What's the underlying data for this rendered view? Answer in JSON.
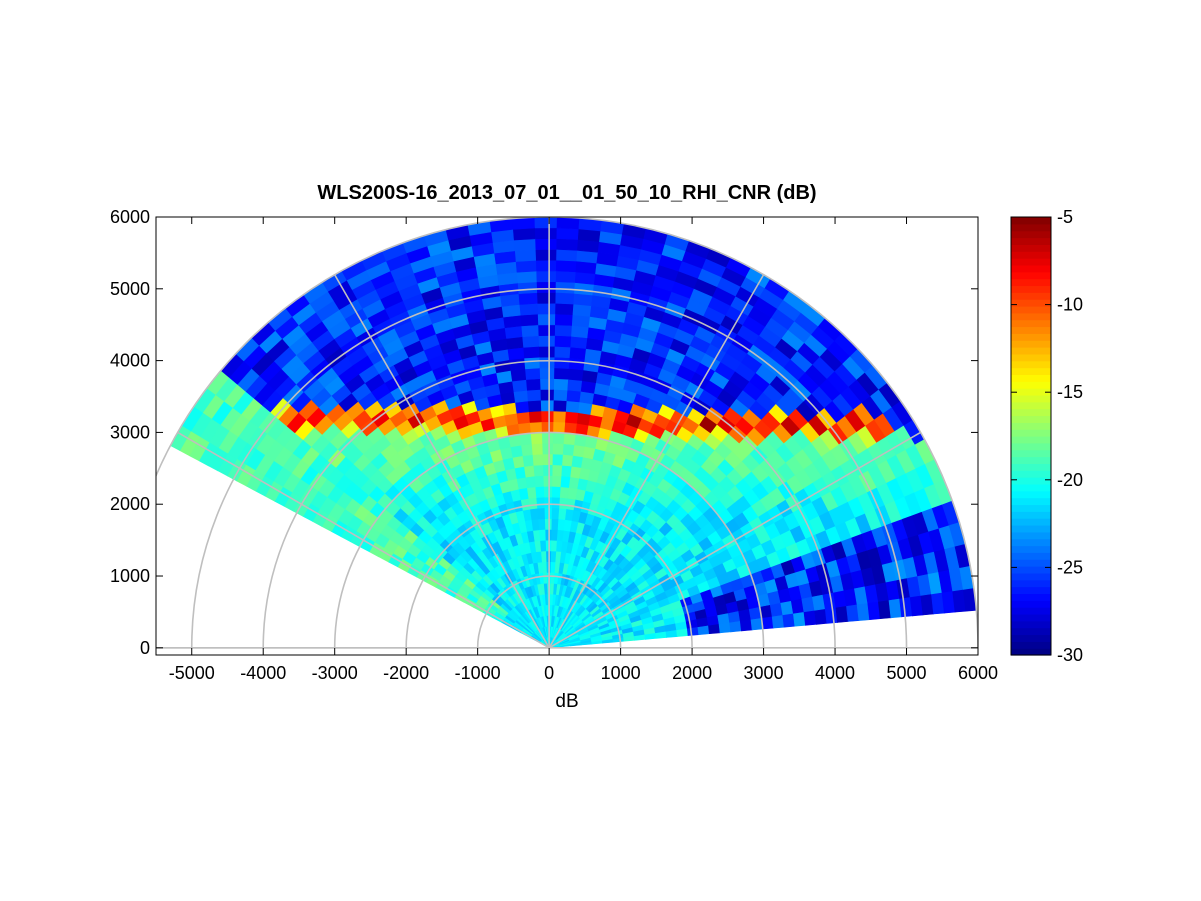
{
  "chart_data": {
    "type": "heatmap",
    "subtype": "polar-rhi-scan",
    "title": "WLS200S-16_2013_07_01__01_50_10_RHI_CNR (dB)",
    "xlabel": "dB",
    "ylabel": "",
    "xlim": [
      -5500,
      6000
    ],
    "ylim": [
      -100,
      6000
    ],
    "xticks": [
      -5000,
      -4000,
      -3000,
      -2000,
      -1000,
      0,
      1000,
      2000,
      3000,
      4000,
      5000,
      6000
    ],
    "yticks": [
      0,
      1000,
      2000,
      3000,
      4000,
      5000,
      6000
    ],
    "xtick_labels": [
      "-5000",
      "-4000",
      "-3000",
      "-2000",
      "-1000",
      "0",
      "1000",
      "2000",
      "3000",
      "4000",
      "5000",
      "6000"
    ],
    "ytick_labels": [
      "0",
      "1000",
      "2000",
      "3000",
      "4000",
      "5000",
      "6000"
    ],
    "grid": true,
    "polar_grid": {
      "range_rings": [
        1000,
        2000,
        3000,
        4000,
        5000,
        6000
      ],
      "spokes_deg": [
        30,
        60,
        90,
        120,
        150,
        180
      ]
    },
    "scan": {
      "elevation_start_deg": 5,
      "elevation_end_deg": 152,
      "max_range": 6000,
      "range_gate": 150,
      "angle_step_deg": 3
    },
    "colorbar": {
      "colormap": "jet",
      "min": -30,
      "max": -5,
      "ticks": [
        -5,
        -10,
        -15,
        -20,
        -25,
        -30
      ],
      "tick_labels": [
        "-5",
        "-10",
        "-15",
        "-20",
        "-25",
        "-30"
      ]
    },
    "features": {
      "background_cnr_db": -26,
      "near_field_cnr_db": -21,
      "boundary_layer_top_height": 3150,
      "boundary_layer_top_cnr_db": -5,
      "low_elevation_beam_cnr_db": -19
    }
  }
}
